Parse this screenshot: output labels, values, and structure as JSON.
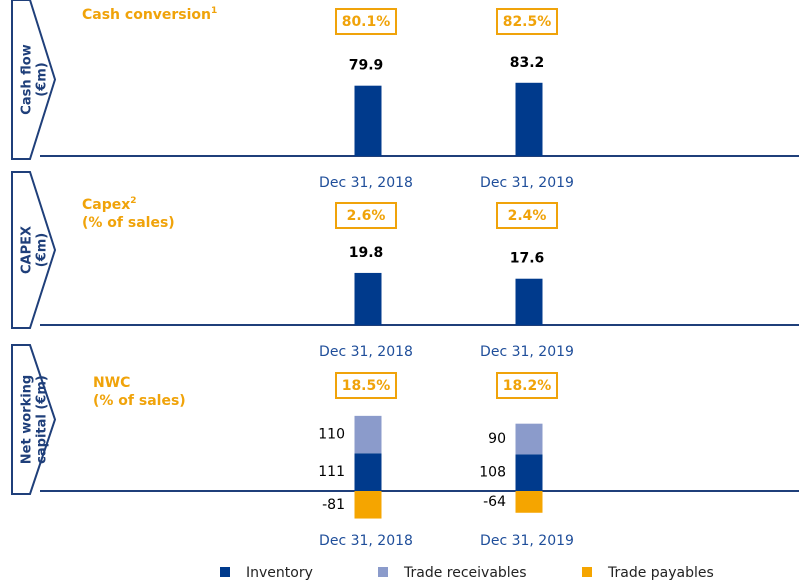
{
  "chart_data": [
    {
      "type": "bar",
      "side_label": [
        "Cash flow",
        "(€m)"
      ],
      "kpi_title": [
        "Cash conversion"
      ],
      "kpi_note": "1",
      "kpi_labels": [
        "80.1%",
        "82.5%"
      ],
      "categories": [
        "Dec 31, 2018",
        "Dec 31, 2019"
      ],
      "values": [
        79.9,
        83.2
      ],
      "color": "#003a8c"
    },
    {
      "type": "bar",
      "side_label": [
        "CAPEX",
        "(€m)"
      ],
      "kpi_title": [
        "Capex",
        "(% of sales)"
      ],
      "kpi_note": "2",
      "kpi_labels": [
        "2.6%",
        "2.4%"
      ],
      "categories": [
        "Dec 31, 2018",
        "Dec 31, 2019"
      ],
      "values": [
        19.8,
        17.6
      ],
      "color": "#003a8c"
    },
    {
      "type": "stacked_bar",
      "side_label": [
        "Net working",
        "capital (€m)"
      ],
      "kpi_title": [
        "NWC",
        "(% of sales)"
      ],
      "kpi_labels": [
        "18.5%",
        "18.2%"
      ],
      "categories": [
        "Dec 31, 2018",
        "Dec 31, 2019"
      ],
      "series": [
        {
          "name": "Inventory",
          "color": "#003a8c",
          "values": [
            111,
            108
          ]
        },
        {
          "name": "Trade receivables",
          "color": "#8b9bcb",
          "values": [
            110,
            90
          ]
        },
        {
          "name": "Trade payables",
          "color": "#f5a500",
          "values": [
            -81,
            -64
          ]
        }
      ]
    }
  ]
}
